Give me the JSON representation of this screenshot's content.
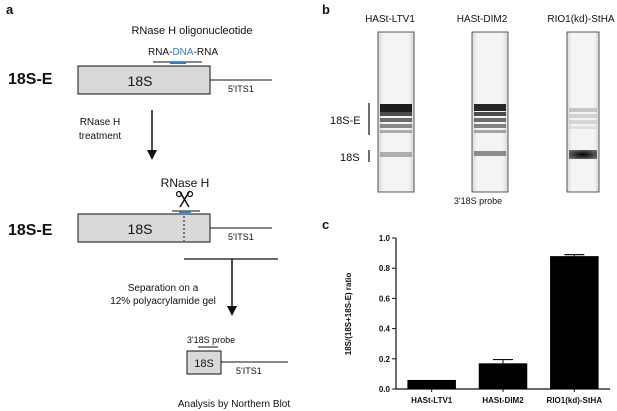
{
  "panel_a": {
    "label": "a",
    "oligo_title": "RNase H oligonucleotide",
    "oligo_seq": {
      "left": "RNA-",
      "mid": "DNA",
      "right": "-RNA"
    },
    "precursor_label": "18S-E",
    "box_label": "18S",
    "spacer_label": "5'ITS1",
    "treatment_line1": "RNase H",
    "treatment_line2": "treatment",
    "rnaseh_label": "RNase H",
    "precursor_label_2": "18S-E",
    "box_label_2": "18S",
    "spacer_label_2": "5'ITS1",
    "separation_line1": "Separation on a",
    "separation_line2": "12% polyacrylamide gel",
    "probe_label": "3'18S probe",
    "product_box_label": "18S",
    "product_spacer_label": "5'ITS1",
    "analysis_label": "Analysis by Northern Blot"
  },
  "panel_b": {
    "label": "b",
    "lanes": [
      "HASt-LTV1",
      "HASt-DIM2",
      "RIO1(kd)-StHA"
    ],
    "band_label_1": "18S-E",
    "band_label_2": "18S",
    "probe_caption": "3'18S probe"
  },
  "panel_c": {
    "label": "c"
  },
  "chart_data": {
    "type": "bar",
    "categories": [
      "HASt-LTV1",
      "HASt-DIM2",
      "RIO1(kd)-StHA"
    ],
    "values": [
      0.06,
      0.17,
      0.88
    ],
    "errors": [
      0.0,
      0.025,
      0.01
    ],
    "ylabel": "18S/(18S+18S-E) ratio",
    "ylim": [
      0,
      1.0
    ],
    "yticks": [
      "0.0",
      "0.2",
      "0.4",
      "0.6",
      "0.8",
      "1.0"
    ],
    "bar_color": "#000000"
  }
}
